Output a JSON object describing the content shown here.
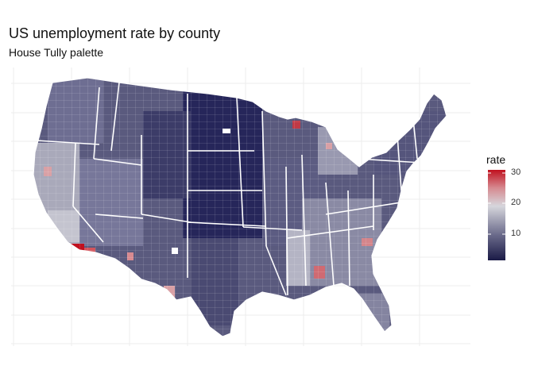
{
  "header": {
    "title": "US unemployment rate by county",
    "subtitle": "House Tully palette"
  },
  "legend": {
    "title": "rate",
    "ticks": [
      {
        "label": "30",
        "value": 30
      },
      {
        "label": "20",
        "value": 20
      },
      {
        "label": "10",
        "value": 10
      }
    ],
    "min": 2,
    "max": 31,
    "colors": {
      "low": "#1a1a46",
      "mid_low": "#6a6a8a",
      "mid": "#d6d6dc",
      "high": "#c0101e"
    }
  },
  "map": {
    "type": "choropleth",
    "region": "contiguous United States",
    "variable": "county unemployment rate",
    "grid": true,
    "legend_position": "right"
  }
}
